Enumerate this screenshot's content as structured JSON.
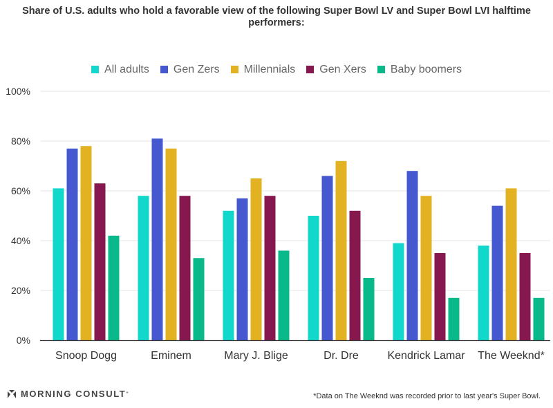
{
  "chart_data": {
    "type": "bar",
    "title": "Share of U.S. adults who hold a favorable view of the following Super Bowl LV and Super Bowl LVI halftime performers:",
    "categories": [
      "Snoop Dogg",
      "Eminem",
      "Mary J. Blige",
      "Dr. Dre",
      "Kendrick Lamar",
      "The Weeknd*"
    ],
    "series": [
      {
        "name": "All adults",
        "color": "#12d8cc",
        "values": [
          61,
          58,
          52,
          50,
          39,
          38
        ]
      },
      {
        "name": "Gen Zers",
        "color": "#4658cf",
        "values": [
          77,
          81,
          57,
          66,
          68,
          54
        ]
      },
      {
        "name": "Millennials",
        "color": "#e3b223",
        "values": [
          78,
          77,
          65,
          72,
          58,
          61
        ]
      },
      {
        "name": "Gen Xers",
        "color": "#86184f",
        "values": [
          63,
          58,
          58,
          52,
          35,
          35
        ]
      },
      {
        "name": "Baby boomers",
        "color": "#0ab98a",
        "values": [
          42,
          33,
          36,
          25,
          17,
          17
        ]
      }
    ],
    "ylim": [
      0,
      100
    ],
    "yticks": [
      0,
      20,
      40,
      60,
      80,
      100
    ],
    "ytick_labels": [
      "0%",
      "20%",
      "40%",
      "60%",
      "80%",
      "100%"
    ],
    "xlabel": "",
    "ylabel": "",
    "grid": true,
    "legend": "top"
  },
  "footer": {
    "logo_text": "MORNING CONSULT",
    "logo_mark": "ʺ",
    "note": "*Data on The Weeknd was recorded prior to last year's Super Bowl."
  },
  "colors": {
    "grid": "#e6e6e6",
    "axis": "#333333"
  }
}
